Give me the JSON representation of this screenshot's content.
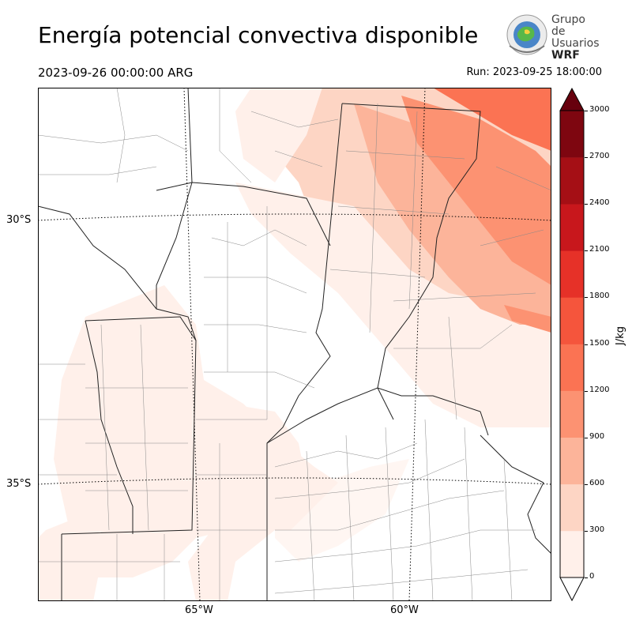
{
  "header": {
    "title": "Energía potencial convectiva disponible",
    "valid_time": "2023-09-26 00:00:00 ARG",
    "run_time": "Run: 2023-09-25 18:00:00"
  },
  "logo": {
    "line1": "Grupo de",
    "line2": "Usuarios",
    "line3": "WRF"
  },
  "map": {
    "lat_labels": [
      "30°S",
      "35°S"
    ],
    "lon_labels": [
      "65°W",
      "60°W"
    ]
  },
  "colorbar": {
    "unit": "J/kg",
    "ticks": [
      "0",
      "300",
      "600",
      "900",
      "1200",
      "1500",
      "1800",
      "2100",
      "2400",
      "2700",
      "3000"
    ],
    "colors": [
      "#fff0ea",
      "#fdd5c4",
      "#fcb49a",
      "#fc9272",
      "#fb7353",
      "#f5553c",
      "#e63128",
      "#c8171c",
      "#a50f15",
      "#7e0610"
    ],
    "extend_color": "#67000d"
  }
}
